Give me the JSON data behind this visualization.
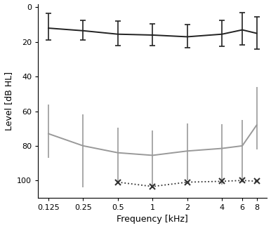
{
  "freqs": [
    0.125,
    0.25,
    0.5,
    1,
    2,
    4,
    6,
    8
  ],
  "freq_labels": [
    "0.125",
    "0.25",
    "0.5",
    "1",
    "2",
    "4",
    "6",
    "8"
  ],
  "black_y": [
    12.0,
    13.5,
    15.5,
    16.0,
    17.0,
    15.5,
    13.0,
    15.0
  ],
  "black_yerr_up": [
    7.0,
    5.5,
    6.5,
    6.0,
    6.5,
    7.0,
    8.5,
    9.0
  ],
  "black_yerr_dn": [
    8.5,
    6.0,
    7.5,
    6.5,
    7.0,
    8.0,
    10.0,
    9.5
  ],
  "gray_y": [
    73.0,
    80.0,
    84.0,
    85.5,
    83.0,
    81.5,
    80.0,
    68.0
  ],
  "gray_yerr_up": [
    14.0,
    24.0,
    18.0,
    18.5,
    17.0,
    21.0,
    21.0,
    14.0
  ],
  "gray_yerr_dn": [
    17.0,
    18.0,
    14.5,
    14.5,
    16.0,
    14.0,
    15.0,
    22.0
  ],
  "dot_freqs": [
    0.5,
    1,
    2,
    4,
    6,
    8
  ],
  "dot_y": [
    101.0,
    103.5,
    101.0,
    100.5,
    100.0,
    100.5
  ],
  "ylim": [
    110,
    -2
  ],
  "yticks": [
    0,
    20,
    40,
    60,
    80,
    100
  ],
  "black_color": "#222222",
  "gray_color": "#999999",
  "dot_color": "#333333",
  "xlabel": "Frequency [kHz]",
  "ylabel": "Level [dB HL]",
  "bg_color": "#ffffff"
}
